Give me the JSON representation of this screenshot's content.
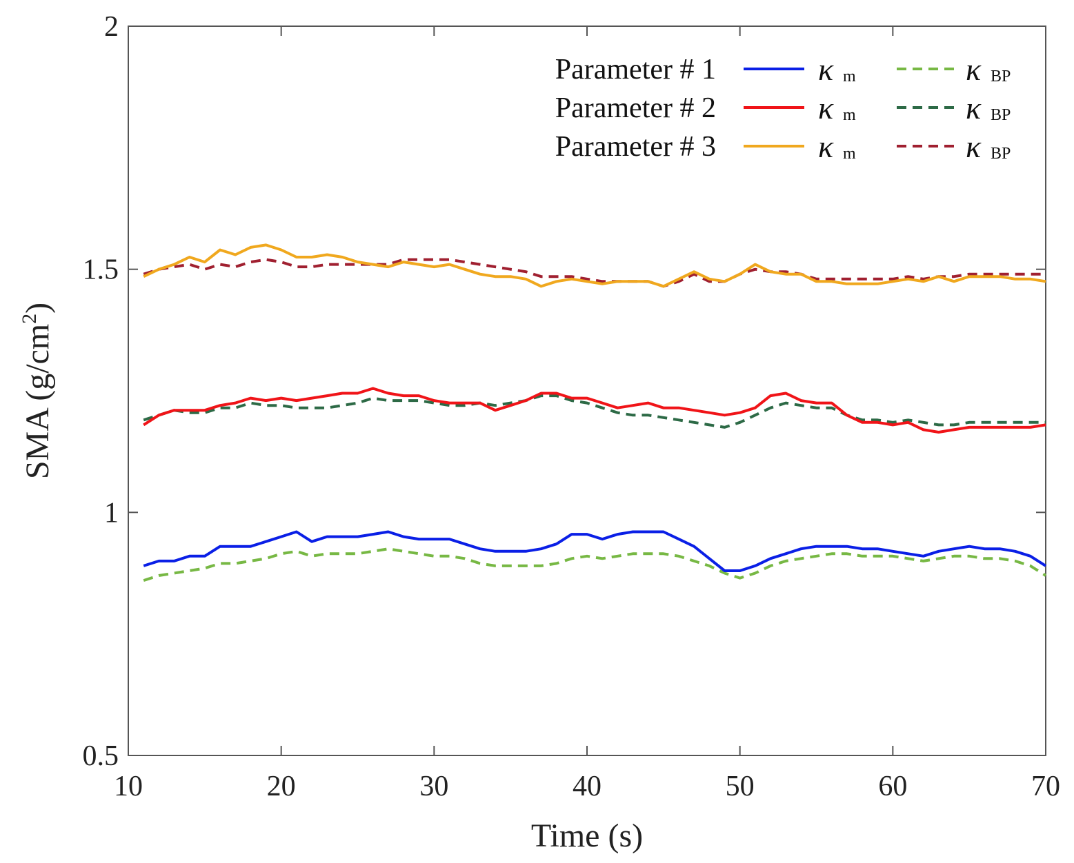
{
  "chart_data": {
    "type": "line",
    "title": "",
    "xlabel": "Time (s)",
    "ylabel_main": "SMA (g/cm",
    "ylabel_sup": "2",
    "ylabel_close": ")",
    "xlim": [
      10,
      70
    ],
    "ylim": [
      0.5,
      2
    ],
    "xticks": [
      "10",
      "20",
      "30",
      "40",
      "50",
      "60",
      "70"
    ],
    "yticks": [
      "0.5",
      "1",
      "1.5",
      "2"
    ],
    "grid": false,
    "legend_position": "top-right",
    "legend": {
      "rows": [
        {
          "label": "Parameter # 1",
          "m_color": "#0a1fe6",
          "bp_color": "#77b844"
        },
        {
          "label": "Parameter # 2",
          "m_color": "#f01418",
          "bp_color": "#2d6a46"
        },
        {
          "label": "Parameter # 3",
          "m_color": "#f0a81e",
          "bp_color": "#a02030"
        }
      ],
      "m_symbol": "κ",
      "m_sub": "m",
      "bp_symbol": "κ",
      "bp_sub": "BP"
    },
    "x": [
      11,
      12,
      13,
      14,
      15,
      16,
      17,
      18,
      19,
      20,
      21,
      22,
      23,
      24,
      25,
      26,
      27,
      28,
      29,
      30,
      31,
      32,
      33,
      34,
      35,
      36,
      37,
      38,
      39,
      40,
      41,
      42,
      43,
      44,
      45,
      46,
      47,
      48,
      49,
      50,
      51,
      52,
      53,
      54,
      55,
      56,
      57,
      58,
      59,
      60,
      61,
      62,
      63,
      64,
      65,
      66,
      67,
      68,
      69,
      70
    ],
    "series": [
      {
        "name": "Parameter # 1 κm",
        "color": "#0a1fe6",
        "dashed": false,
        "values": [
          0.89,
          0.9,
          0.9,
          0.91,
          0.91,
          0.93,
          0.93,
          0.93,
          0.94,
          0.95,
          0.96,
          0.94,
          0.95,
          0.95,
          0.95,
          0.955,
          0.96,
          0.95,
          0.945,
          0.945,
          0.945,
          0.935,
          0.925,
          0.92,
          0.92,
          0.92,
          0.925,
          0.935,
          0.955,
          0.955,
          0.945,
          0.955,
          0.96,
          0.96,
          0.96,
          0.945,
          0.93,
          0.905,
          0.88,
          0.88,
          0.89,
          0.905,
          0.915,
          0.925,
          0.93,
          0.93,
          0.93,
          0.925,
          0.925,
          0.92,
          0.915,
          0.91,
          0.92,
          0.925,
          0.93,
          0.925,
          0.925,
          0.92,
          0.91,
          0.89
        ]
      },
      {
        "name": "Parameter # 1 κBP",
        "color": "#77b844",
        "dashed": true,
        "values": [
          0.86,
          0.87,
          0.875,
          0.88,
          0.885,
          0.895,
          0.895,
          0.9,
          0.905,
          0.915,
          0.92,
          0.91,
          0.915,
          0.915,
          0.915,
          0.92,
          0.925,
          0.92,
          0.915,
          0.91,
          0.91,
          0.905,
          0.895,
          0.89,
          0.89,
          0.89,
          0.89,
          0.895,
          0.905,
          0.91,
          0.905,
          0.91,
          0.915,
          0.915,
          0.915,
          0.91,
          0.9,
          0.89,
          0.875,
          0.865,
          0.875,
          0.89,
          0.9,
          0.905,
          0.91,
          0.915,
          0.915,
          0.91,
          0.91,
          0.91,
          0.905,
          0.9,
          0.905,
          0.91,
          0.91,
          0.905,
          0.905,
          0.9,
          0.89,
          0.87
        ]
      },
      {
        "name": "Parameter # 2 κm",
        "color": "#f01418",
        "dashed": false,
        "values": [
          1.18,
          1.2,
          1.21,
          1.21,
          1.21,
          1.22,
          1.225,
          1.235,
          1.23,
          1.235,
          1.23,
          1.235,
          1.24,
          1.245,
          1.245,
          1.255,
          1.245,
          1.24,
          1.24,
          1.23,
          1.225,
          1.225,
          1.225,
          1.21,
          1.22,
          1.23,
          1.245,
          1.245,
          1.235,
          1.235,
          1.225,
          1.215,
          1.22,
          1.225,
          1.215,
          1.215,
          1.21,
          1.205,
          1.2,
          1.205,
          1.215,
          1.24,
          1.245,
          1.23,
          1.225,
          1.225,
          1.2,
          1.185,
          1.185,
          1.18,
          1.185,
          1.17,
          1.165,
          1.17,
          1.175,
          1.175,
          1.175,
          1.175,
          1.175,
          1.18
        ]
      },
      {
        "name": "Parameter # 2 κBP",
        "color": "#2d6a46",
        "dashed": true,
        "values": [
          1.19,
          1.2,
          1.21,
          1.205,
          1.205,
          1.215,
          1.215,
          1.225,
          1.22,
          1.22,
          1.215,
          1.215,
          1.215,
          1.22,
          1.225,
          1.235,
          1.23,
          1.23,
          1.23,
          1.225,
          1.22,
          1.22,
          1.225,
          1.22,
          1.225,
          1.23,
          1.24,
          1.24,
          1.23,
          1.225,
          1.215,
          1.205,
          1.2,
          1.2,
          1.195,
          1.19,
          1.185,
          1.18,
          1.175,
          1.185,
          1.2,
          1.215,
          1.225,
          1.22,
          1.215,
          1.215,
          1.2,
          1.19,
          1.19,
          1.185,
          1.19,
          1.185,
          1.18,
          1.18,
          1.185,
          1.185,
          1.185,
          1.185,
          1.185,
          1.185
        ]
      },
      {
        "name": "Parameter # 3 κm",
        "color": "#f0a81e",
        "dashed": false,
        "values": [
          1.485,
          1.5,
          1.51,
          1.525,
          1.515,
          1.54,
          1.53,
          1.545,
          1.55,
          1.54,
          1.525,
          1.525,
          1.53,
          1.525,
          1.515,
          1.51,
          1.505,
          1.515,
          1.51,
          1.505,
          1.51,
          1.5,
          1.49,
          1.485,
          1.485,
          1.48,
          1.465,
          1.475,
          1.48,
          1.475,
          1.47,
          1.475,
          1.475,
          1.475,
          1.465,
          1.48,
          1.495,
          1.48,
          1.475,
          1.49,
          1.51,
          1.495,
          1.49,
          1.49,
          1.475,
          1.475,
          1.47,
          1.47,
          1.47,
          1.475,
          1.48,
          1.475,
          1.485,
          1.475,
          1.485,
          1.485,
          1.485,
          1.48,
          1.48,
          1.475
        ]
      },
      {
        "name": "Parameter # 3 κBP",
        "color": "#a02030",
        "dashed": true,
        "values": [
          1.49,
          1.5,
          1.505,
          1.51,
          1.5,
          1.51,
          1.505,
          1.515,
          1.52,
          1.515,
          1.505,
          1.505,
          1.51,
          1.51,
          1.51,
          1.51,
          1.51,
          1.52,
          1.52,
          1.52,
          1.52,
          1.515,
          1.51,
          1.505,
          1.5,
          1.495,
          1.485,
          1.485,
          1.485,
          1.48,
          1.475,
          1.475,
          1.475,
          1.475,
          1.465,
          1.475,
          1.49,
          1.475,
          1.475,
          1.49,
          1.5,
          1.495,
          1.495,
          1.49,
          1.48,
          1.48,
          1.48,
          1.48,
          1.48,
          1.48,
          1.485,
          1.48,
          1.485,
          1.485,
          1.49,
          1.49,
          1.49,
          1.49,
          1.49,
          1.49
        ]
      }
    ]
  }
}
